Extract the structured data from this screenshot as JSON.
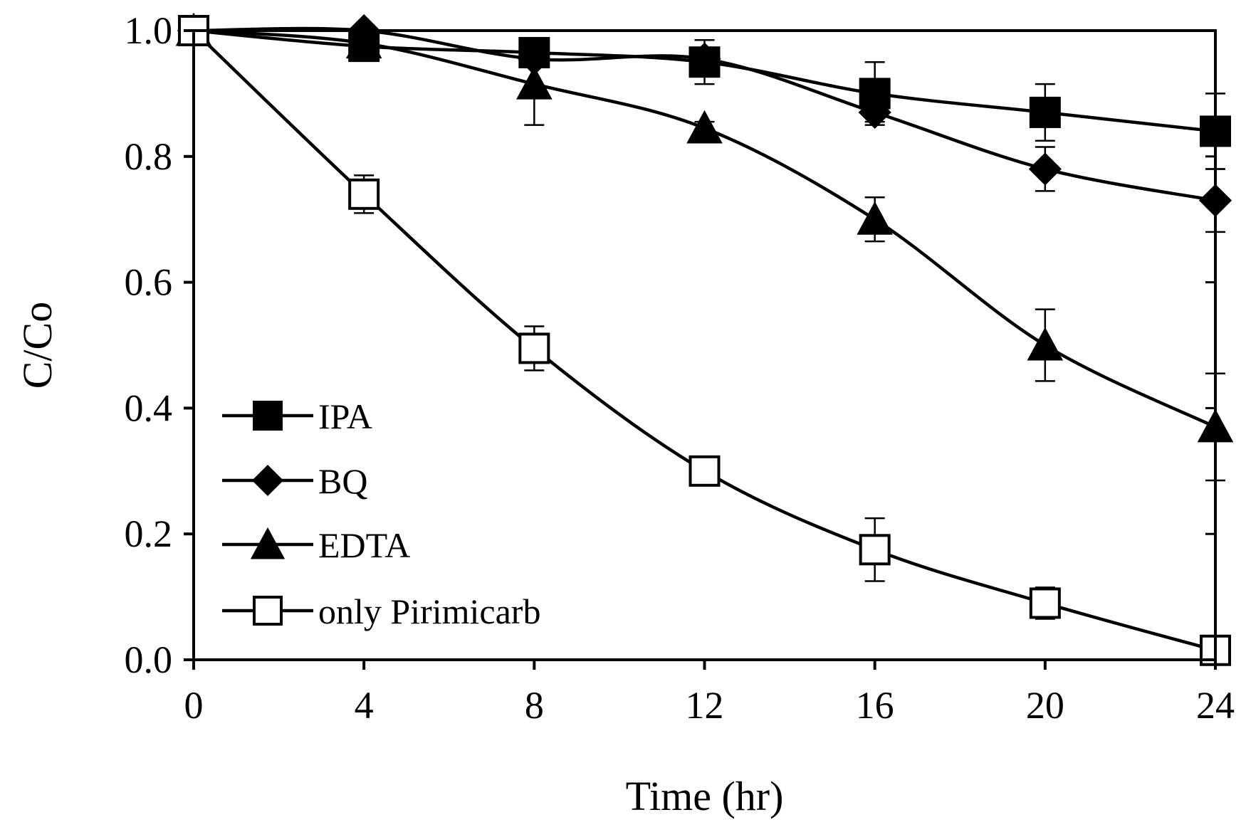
{
  "chart_data": {
    "type": "line",
    "title": "",
    "xlabel": "Time (hr)",
    "ylabel": "C/Co",
    "xlim": [
      0,
      24
    ],
    "ylim": [
      0,
      1.0
    ],
    "x": [
      0,
      4,
      8,
      12,
      16,
      20,
      24
    ],
    "xticks": [
      "0",
      "4",
      "8",
      "12",
      "16",
      "20",
      "24"
    ],
    "yticks": [
      "0.0",
      "0.2",
      "0.4",
      "0.6",
      "0.8",
      "1.0"
    ],
    "grid": false,
    "legend_position": "left",
    "series": [
      {
        "name": "IPA",
        "marker": "filled-square",
        "values": [
          1.0,
          0.975,
          0.965,
          0.95,
          0.9,
          0.87,
          0.84
        ],
        "errors": [
          0,
          0.01,
          0.01,
          0.035,
          0.05,
          0.045,
          0.06
        ]
      },
      {
        "name": "BQ",
        "marker": "filled-diamond",
        "values": [
          1.0,
          1.0,
          0.955,
          0.955,
          0.87,
          0.78,
          0.73
        ],
        "errors": [
          0,
          0.005,
          0.01,
          0.01,
          0.015,
          0.035,
          0.05
        ]
      },
      {
        "name": "EDTA",
        "marker": "filled-triangle",
        "values": [
          1.0,
          0.98,
          0.915,
          0.845,
          0.7,
          0.5,
          0.37
        ],
        "errors": [
          0,
          0.01,
          0.065,
          0.01,
          0.035,
          0.057,
          0.085
        ]
      },
      {
        "name": "only Pirimicarb",
        "marker": "open-square",
        "values": [
          1.0,
          0.74,
          0.495,
          0.3,
          0.175,
          0.09,
          0.015
        ],
        "errors": [
          0,
          0.03,
          0.035,
          0.008,
          0.05,
          0.025,
          0.008
        ]
      }
    ]
  }
}
